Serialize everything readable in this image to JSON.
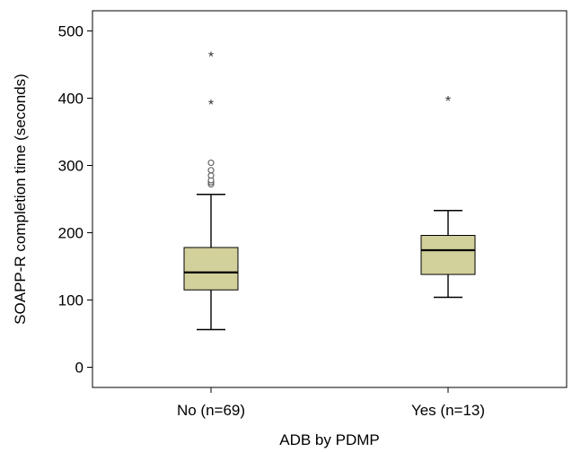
{
  "chart_data": {
    "type": "boxplot",
    "title": "",
    "xlabel": "ADB by PDMP",
    "ylabel": "SOAPP-R completion time (seconds)",
    "ylim": [
      -30,
      530
    ],
    "yticks": [
      0,
      100,
      200,
      300,
      400,
      500
    ],
    "grid": false,
    "box_color": "#d3d19b",
    "categories": [
      "No (n=69)",
      "Yes (n=13)"
    ],
    "groups": [
      {
        "label": "No (n=69)",
        "whisker_low": 56,
        "q1": 115,
        "median": 141,
        "q3": 178,
        "whisker_high": 257,
        "outliers": [
          272,
          275,
          278,
          285,
          293,
          304
        ],
        "extremes": [
          393,
          464
        ]
      },
      {
        "label": "Yes (n=13)",
        "whisker_low": 104,
        "q1": 138,
        "median": 174,
        "q3": 196,
        "whisker_high": 233,
        "outliers": [],
        "extremes": [
          398
        ]
      }
    ]
  }
}
